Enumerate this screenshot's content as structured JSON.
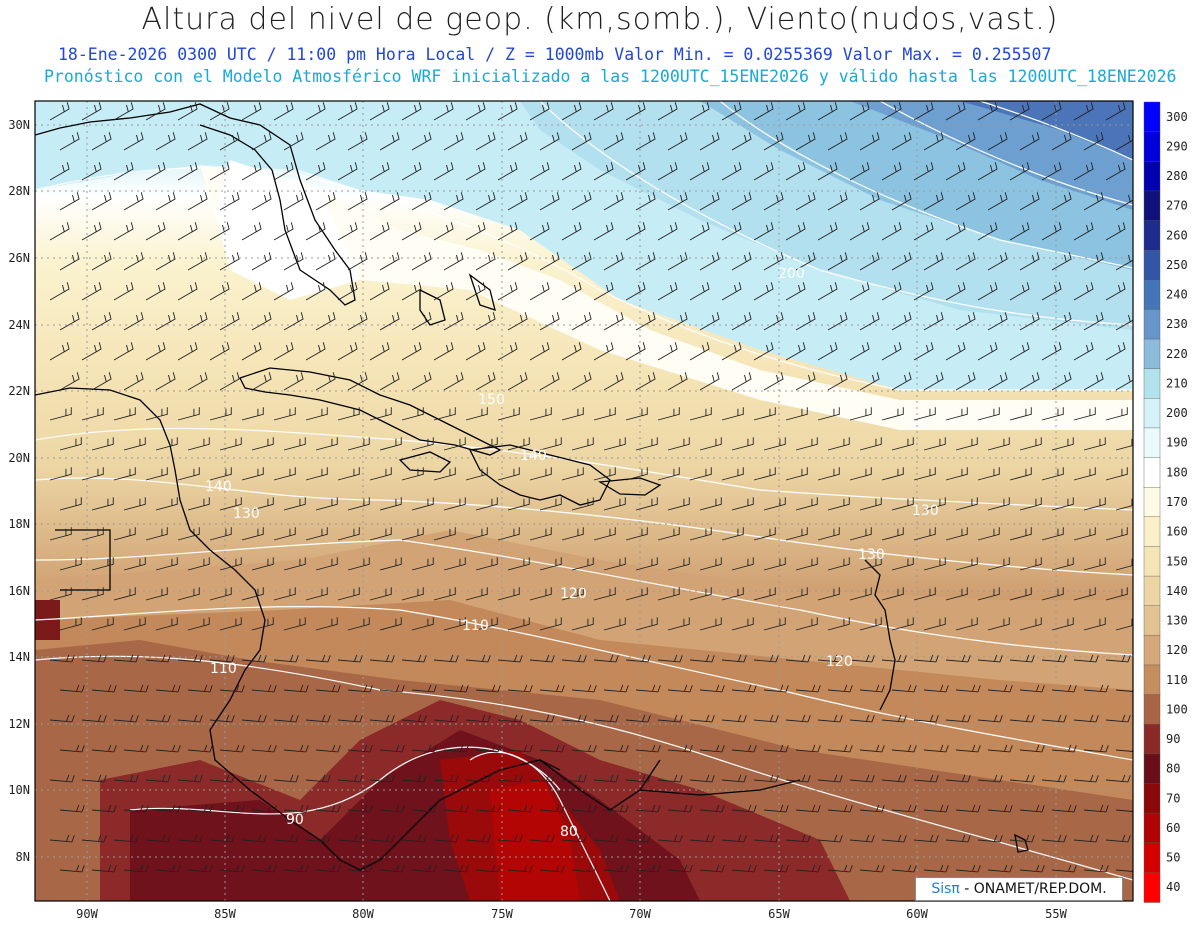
{
  "header": {
    "title": "Altura del nivel de geop. (km,somb.), Viento(nudos,vast.)",
    "subtitle_line1": "18-Ene-2026 0300 UTC / 11:00 pm Hora Local / Z = 1000mb Valor Min. = 0.0255369  Valor Max. = 0.255507",
    "subtitle_line2": "Pronóstico con el Modelo Atmosférico WRF inicializado a las 1200UTC_15ENE2026 y válido hasta las  1200UTC_18ENE2026"
  },
  "axes": {
    "lat_labels": [
      "30N",
      "28N",
      "26N",
      "24N",
      "22N",
      "20N",
      "18N",
      "16N",
      "14N",
      "12N",
      "10N",
      "8N"
    ],
    "lon_labels": [
      "90W",
      "85W",
      "80W",
      "75W",
      "70W",
      "65W",
      "60W",
      "55W"
    ]
  },
  "colorbar": {
    "labels": [
      "300",
      "290",
      "280",
      "270",
      "260",
      "250",
      "240",
      "230",
      "220",
      "210",
      "200",
      "190",
      "180",
      "170",
      "160",
      "150",
      "140",
      "130",
      "120",
      "110",
      "100",
      "90",
      "80",
      "70",
      "60",
      "50",
      "40"
    ],
    "colors": [
      "#0000ff",
      "#0000d8",
      "#0000b0",
      "#10107a",
      "#1e2c8c",
      "#3355a6",
      "#4475b8",
      "#6795c8",
      "#8cbbdc",
      "#b2e2ee",
      "#d4f2f8",
      "#eafafd",
      "#ffffff",
      "#fffae6",
      "#faefc6",
      "#f5e4b6",
      "#ecd5a3",
      "#e2c290",
      "#d4a878",
      "#c58e5e",
      "#a86646",
      "#8c2a2a",
      "#6a0f1a",
      "#8a0808",
      "#b00404",
      "#d40000",
      "#ff0000"
    ]
  },
  "contour_labels": [
    "200",
    "130",
    "150",
    "140",
    "130",
    "120",
    "110",
    "120",
    "130",
    "140",
    "110",
    "90",
    "80"
  ],
  "credit": {
    "brand": "Sisπ",
    "text": " - ONAMET/REP.DOM."
  }
}
